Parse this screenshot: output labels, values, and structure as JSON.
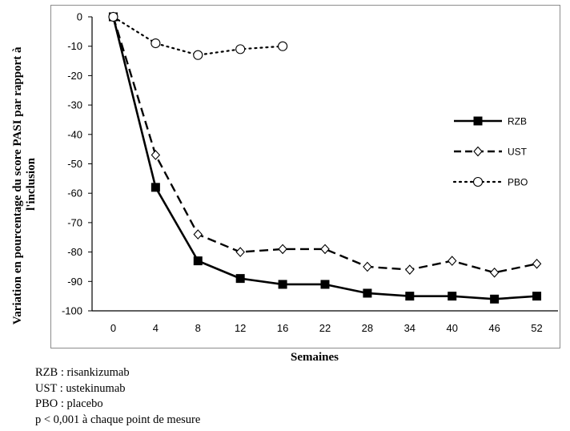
{
  "chart_data": {
    "type": "line",
    "xlabel": "Semaines",
    "ylabel_lines": [
      "Variation en pourcentage du score PASI par rapport à",
      "l'inclusion"
    ],
    "categories": [
      "0",
      "4",
      "8",
      "12",
      "16",
      "22",
      "28",
      "34",
      "40",
      "46",
      "52"
    ],
    "ylim": [
      -100,
      0
    ],
    "yticks": [
      0,
      -10,
      -20,
      -30,
      -40,
      -50,
      -60,
      -70,
      -80,
      -90,
      -100
    ],
    "grid": false,
    "legend_position": "right",
    "series": [
      {
        "name": "RZB",
        "style": "solid",
        "marker": "filled-square",
        "color": "#000000",
        "values": [
          0,
          -58,
          -83,
          -89,
          -91,
          -91,
          -94,
          -95,
          -95,
          -96,
          -95
        ]
      },
      {
        "name": "UST",
        "style": "dashed",
        "marker": "open-diamond",
        "color": "#000000",
        "values": [
          0,
          -47,
          -74,
          -80,
          -79,
          -79,
          -85,
          -86,
          -83,
          -87,
          -84
        ]
      },
      {
        "name": "PBO",
        "style": "dotted",
        "marker": "open-circle",
        "color": "#000000",
        "values": [
          0,
          -9,
          -13,
          -11,
          -10,
          null,
          null,
          null,
          null,
          null,
          null
        ]
      }
    ]
  },
  "footnotes": [
    "RZB : risankizumab",
    "UST : ustekinumab",
    "PBO : placebo",
    "p < 0,001 à chaque point de mesure"
  ]
}
